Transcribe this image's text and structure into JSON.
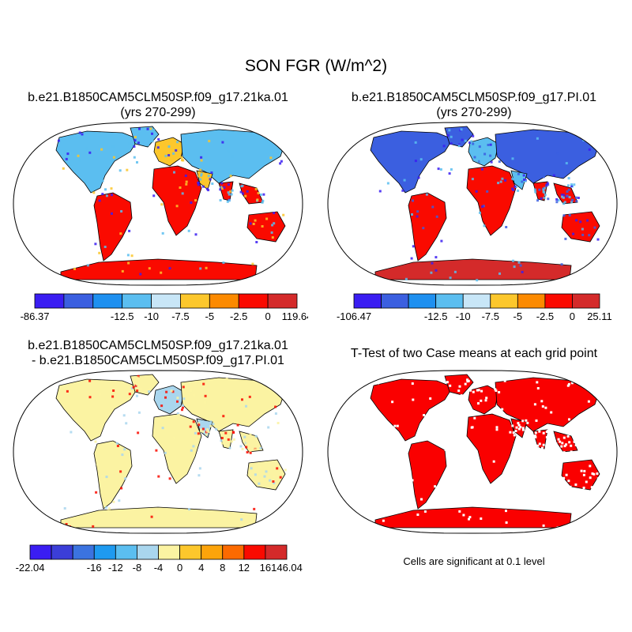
{
  "figure": {
    "title": "SON FGR (W/m^2)"
  },
  "panels": [
    {
      "id": "case1",
      "title_line1": "b.e21.B1850CAM5CLM50SP.f09_g17.21ka.01",
      "title_line2": "(yrs 270-299)"
    },
    {
      "id": "case2",
      "title_line1": "b.e21.B1850CAM5CLM50SP.f09_g17.PI.01",
      "title_line2": "(yrs 270-299)"
    },
    {
      "id": "difference",
      "title_line1": "b.e21.B1850CAM5CLM50SP.f09_g17.21ka.01",
      "title_line2": "- b.e21.B1850CAM5CLM50SP.f09_g17.PI.01"
    },
    {
      "id": "ttest",
      "title_line1": "T-Test of two Case means at each grid point",
      "note": "Cells are significant at 0.1 level"
    }
  ],
  "chart_data": [
    {
      "type": "heatmap",
      "projection": "Robinson world map",
      "title": "b.e21.B1850CAM5CLM50SP.f09_g17.21ka.01 (yrs 270-299)",
      "colorbar_labels": [
        "-86.37",
        "-12.5",
        "-10",
        "-7.5",
        "-5",
        "-2.5",
        "0",
        "119.64"
      ],
      "colorbar_min": -86.37,
      "colorbar_max": 119.64,
      "colorbar_levels": [
        -12.5,
        -10,
        -7.5,
        -5,
        -2.5,
        0
      ],
      "colors": [
        "#3a1df2",
        "#3b5fe0",
        "#1e90f0",
        "#5bbef0",
        "#c8e6f7",
        "#fcc72c",
        "#fc8a00",
        "#fa0a00",
        "#d42a2a"
      ]
    },
    {
      "type": "heatmap",
      "projection": "Robinson world map",
      "title": "b.e21.B1850CAM5CLM50SP.f09_g17.PI.01 (yrs 270-299)",
      "colorbar_labels": [
        "-106.47",
        "-12.5",
        "-10",
        "-7.5",
        "-5",
        "-2.5",
        "0",
        "25.11"
      ],
      "colorbar_min": -106.47,
      "colorbar_max": 25.11,
      "colorbar_levels": [
        -12.5,
        -10,
        -7.5,
        -5,
        -2.5,
        0
      ],
      "colors": [
        "#3a1df2",
        "#3b5fe0",
        "#1e90f0",
        "#5bbef0",
        "#c8e6f7",
        "#fcc72c",
        "#fc8a00",
        "#fa0a00",
        "#d42a2a"
      ]
    },
    {
      "type": "heatmap",
      "projection": "Robinson world map",
      "title": "b.e21.B1850CAM5CLM50SP.f09_g17.21ka.01 - b.e21.B1850CAM5CLM50SP.f09_g17.PI.01",
      "colorbar_labels": [
        "-22.04",
        "-16",
        "-12",
        "-8",
        "-4",
        "0",
        "4",
        "8",
        "12",
        "16",
        "146.04"
      ],
      "colorbar_min": -22.04,
      "colorbar_max": 146.04,
      "colorbar_levels": [
        -16,
        -12,
        -8,
        -4,
        0,
        4,
        8,
        12,
        16
      ],
      "colors": [
        "#3a1df2",
        "#3b3ed8",
        "#3b73e0",
        "#1e9af0",
        "#5bbef0",
        "#a9d6ee",
        "#fbf3a2",
        "#fcc72c",
        "#fca40a",
        "#fc6a00",
        "#fa0a00",
        "#d42a2a"
      ]
    },
    {
      "type": "heatmap",
      "projection": "Robinson world map",
      "title": "T-Test of two Case means at each grid point",
      "significance_color": "#fa0000",
      "significance_level": 0.1
    }
  ]
}
